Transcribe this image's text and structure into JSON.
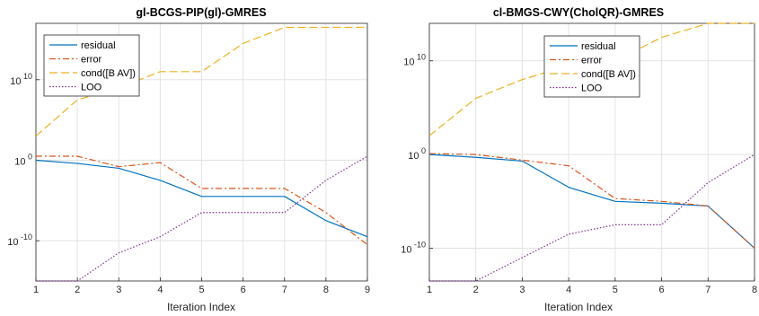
{
  "chart_data": [
    {
      "type": "line",
      "title": "gl-BCGS-PIP(gl)-GMRES",
      "xlabel": "Iteration Index",
      "ylabel": "",
      "yscale": "log",
      "xlim": [
        1,
        9
      ],
      "ylim_exponent": [
        -15,
        17
      ],
      "x": [
        1,
        2,
        3,
        4,
        5,
        6,
        7,
        8,
        9
      ],
      "xticks": [
        "1",
        "2",
        "3",
        "4",
        "5",
        "6",
        "7",
        "8",
        "9"
      ],
      "yticks": [
        {
          "exp": 10,
          "base": "10",
          "sup": "10"
        },
        {
          "exp": 0,
          "base": "10",
          "sup": "0"
        },
        {
          "exp": -10,
          "base": "10",
          "sup": "-10"
        }
      ],
      "grid": true,
      "legend_position": "top-left",
      "series": [
        {
          "name": "residual",
          "color": "#0072BD",
          "dash": "",
          "log10_values": [
            0,
            -0.4,
            -1,
            -2.5,
            -4.5,
            -4.5,
            -4.5,
            -7.5,
            -9.5
          ]
        },
        {
          "name": "error",
          "color": "#D95319",
          "dash": "7 3 2 3",
          "log10_values": [
            0.5,
            0.5,
            -0.8,
            -0.3,
            -3.5,
            -3.5,
            -3.5,
            -6.5,
            -10.5
          ]
        },
        {
          "name": "cond([B AV])",
          "color": "#EDB120",
          "dash": "9 4",
          "log10_values": [
            3,
            7.5,
            9,
            11,
            11,
            14.5,
            16.5,
            16.5,
            16.5
          ]
        },
        {
          "name": "LOO",
          "color": "#7E2F8E",
          "dash": "1.5 2",
          "log10_values": [
            -15,
            -15,
            -11.5,
            -9.5,
            -6.5,
            -6.5,
            -6.5,
            -2.5,
            0.5
          ]
        }
      ]
    },
    {
      "type": "line",
      "title": "cl-BMGS-CWY(CholQR)-GMRES",
      "xlabel": "Iteration Index",
      "ylabel": "",
      "yscale": "log",
      "xlim": [
        1,
        8
      ],
      "ylim_exponent": [
        -13.5,
        14
      ],
      "x": [
        1,
        2,
        3,
        4,
        5,
        6,
        7,
        8
      ],
      "xticks": [
        "1",
        "2",
        "3",
        "4",
        "5",
        "6",
        "7",
        "8"
      ],
      "yticks": [
        {
          "exp": 10,
          "base": "10",
          "sup": "10"
        },
        {
          "exp": 0,
          "base": "10",
          "sup": "0"
        },
        {
          "exp": -10,
          "base": "10",
          "sup": "-10"
        }
      ],
      "grid": true,
      "legend_position": "top",
      "series": [
        {
          "name": "residual",
          "color": "#0072BD",
          "dash": "",
          "log10_values": [
            0,
            -0.3,
            -0.7,
            -3.5,
            -5,
            -5.2,
            -5.5,
            -10
          ]
        },
        {
          "name": "error",
          "color": "#D95319",
          "dash": "7 3 2 3",
          "log10_values": [
            0.1,
            0,
            -0.6,
            -1.2,
            -4.7,
            -5,
            -5.5,
            -10
          ]
        },
        {
          "name": "cond([B AV])",
          "color": "#EDB120",
          "dash": "9 4",
          "log10_values": [
            2,
            6,
            8,
            9.5,
            10,
            12.5,
            14,
            14
          ]
        },
        {
          "name": "LOO",
          "color": "#7E2F8E",
          "dash": "1.5 2",
          "log10_values": [
            -13.5,
            -13.5,
            -11,
            -8.5,
            -7.5,
            -7.5,
            -3,
            0
          ]
        }
      ]
    }
  ]
}
